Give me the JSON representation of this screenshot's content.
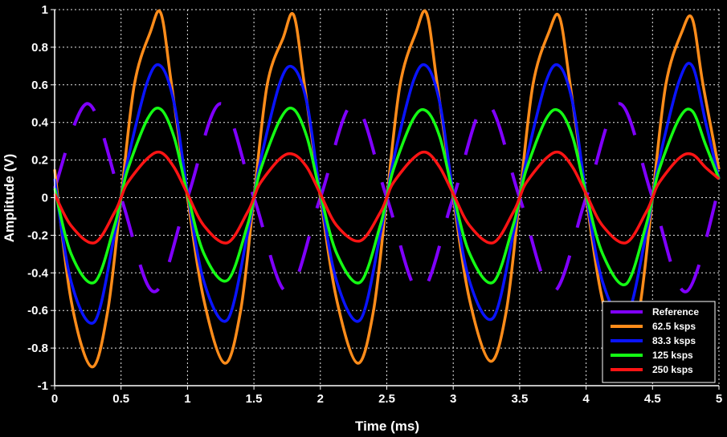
{
  "chart_data": {
    "type": "line",
    "title": "",
    "xlabel": "Time (ms)",
    "ylabel": "Amplitude (V)",
    "xlim": [
      0,
      5
    ],
    "ylim": [
      -1,
      1
    ],
    "grid": true,
    "legend_position": "bottom-right",
    "x_ticks": [
      "0",
      "0.5",
      "1",
      "1.5",
      "2",
      "2.5",
      "3",
      "3.5",
      "4",
      "4.5",
      "5"
    ],
    "y_ticks": [
      "1",
      "0.8",
      "0.6",
      "0.4",
      "0.2",
      "0",
      "-0.2",
      "-0.4",
      "-0.6",
      "-0.8",
      "-1"
    ],
    "series": [
      {
        "name": "Reference",
        "color": "#8000ff",
        "style": "dashed",
        "x": [
          0,
          0.25,
          0.5,
          0.75,
          1.0,
          1.25,
          1.5,
          1.75,
          2.0,
          2.25,
          2.5,
          2.75,
          3.0,
          3.25,
          3.5,
          3.75,
          4.0,
          4.25,
          4.5,
          4.75,
          5.0
        ],
        "values": [
          0.05,
          0.5,
          0,
          -0.5,
          0,
          0.5,
          0,
          -0.5,
          0,
          0.5,
          0,
          -0.5,
          0,
          0.5,
          0,
          -0.5,
          0,
          0.5,
          0,
          -0.5,
          0.05
        ]
      },
      {
        "name": "62.5 ksps",
        "color": "#ff8c1a",
        "x": [
          0,
          0.125,
          0.28,
          0.4,
          0.5,
          0.6,
          0.72,
          0.8,
          0.88,
          1.0,
          1.125,
          1.28,
          1.4,
          1.5,
          1.6,
          1.72,
          1.8,
          1.88,
          2.0,
          2.125,
          2.28,
          2.4,
          2.5,
          2.6,
          2.72,
          2.8,
          2.88,
          3.0,
          3.125,
          3.28,
          3.4,
          3.5,
          3.6,
          3.72,
          3.8,
          3.88,
          4.0,
          4.125,
          4.28,
          4.4,
          4.5,
          4.6,
          4.72,
          4.8,
          4.88,
          5.0
        ],
        "values": [
          0.15,
          -0.55,
          -0.9,
          -0.6,
          0,
          0.6,
          0.88,
          0.98,
          0.6,
          0,
          -0.55,
          -0.88,
          -0.6,
          0,
          0.6,
          0.85,
          0.97,
          0.6,
          0,
          -0.55,
          -0.88,
          -0.6,
          0,
          0.6,
          0.88,
          0.98,
          0.6,
          0,
          -0.55,
          -0.87,
          -0.6,
          0,
          0.6,
          0.88,
          0.96,
          0.6,
          0,
          -0.55,
          -0.87,
          -0.6,
          0,
          0.6,
          0.88,
          0.95,
          0.6,
          0.15
        ]
      },
      {
        "name": "83.3 ksps",
        "color": "#0a14ff",
        "x": [
          0,
          0.125,
          0.3,
          0.45,
          0.5,
          0.55,
          0.7,
          0.8,
          0.9,
          1.0,
          1.125,
          1.3,
          1.45,
          1.5,
          1.55,
          1.7,
          1.8,
          1.9,
          2.0,
          2.125,
          2.3,
          2.45,
          2.5,
          2.55,
          2.7,
          2.8,
          2.9,
          3.0,
          3.125,
          3.3,
          3.45,
          3.5,
          3.55,
          3.7,
          3.8,
          3.9,
          4.0,
          4.125,
          4.3,
          4.45,
          4.5,
          4.55,
          4.7,
          4.8,
          4.9,
          5.0
        ],
        "values": [
          0.1,
          -0.45,
          -0.66,
          -0.2,
          0,
          0.2,
          0.62,
          0.7,
          0.5,
          0.03,
          -0.45,
          -0.65,
          -0.2,
          0,
          0.2,
          0.62,
          0.69,
          0.5,
          0.02,
          -0.45,
          -0.65,
          -0.2,
          0,
          0.2,
          0.62,
          0.7,
          0.5,
          0.02,
          -0.45,
          -0.64,
          -0.2,
          0,
          0.2,
          0.62,
          0.7,
          0.5,
          0.02,
          -0.45,
          -0.64,
          -0.2,
          0,
          0.2,
          0.62,
          0.7,
          0.4,
          0.1
        ]
      },
      {
        "name": "125 ksps",
        "color": "#14ff14",
        "x": [
          0,
          0.125,
          0.3,
          0.45,
          0.5,
          0.55,
          0.7,
          0.8,
          0.9,
          1.0,
          1.125,
          1.3,
          1.45,
          1.5,
          1.55,
          1.7,
          1.8,
          1.9,
          2.0,
          2.125,
          2.3,
          2.45,
          2.5,
          2.55,
          2.7,
          2.8,
          2.9,
          3.0,
          3.125,
          3.3,
          3.45,
          3.5,
          3.55,
          3.7,
          3.8,
          3.9,
          4.0,
          4.125,
          4.3,
          4.45,
          4.5,
          4.55,
          4.7,
          4.8,
          4.9,
          5.0
        ],
        "values": [
          0.05,
          -0.3,
          -0.45,
          -0.15,
          0,
          0.15,
          0.42,
          0.47,
          0.32,
          0.02,
          -0.3,
          -0.44,
          -0.15,
          0,
          0.15,
          0.42,
          0.47,
          0.32,
          0.02,
          -0.3,
          -0.45,
          -0.15,
          0,
          0.15,
          0.42,
          0.46,
          0.32,
          0.02,
          -0.3,
          -0.45,
          -0.15,
          0,
          0.15,
          0.42,
          0.46,
          0.32,
          0.02,
          -0.3,
          -0.46,
          -0.15,
          0,
          0.15,
          0.42,
          0.46,
          0.28,
          0.1
        ]
      },
      {
        "name": "250 ksps",
        "color": "#ff1414",
        "x": [
          0,
          0.125,
          0.3,
          0.45,
          0.5,
          0.55,
          0.7,
          0.8,
          0.9,
          1.0,
          1.125,
          1.3,
          1.45,
          1.5,
          1.55,
          1.7,
          1.8,
          1.9,
          2.0,
          2.125,
          2.3,
          2.45,
          2.5,
          2.55,
          2.7,
          2.8,
          2.9,
          3.0,
          3.125,
          3.3,
          3.45,
          3.5,
          3.55,
          3.7,
          3.8,
          3.9,
          4.0,
          4.125,
          4.3,
          4.45,
          4.5,
          4.55,
          4.7,
          4.8,
          4.9,
          5.0
        ],
        "values": [
          0.02,
          -0.15,
          -0.24,
          -0.08,
          0,
          0.08,
          0.21,
          0.24,
          0.16,
          0.02,
          -0.15,
          -0.24,
          -0.08,
          0,
          0.08,
          0.21,
          0.23,
          0.16,
          0.02,
          -0.15,
          -0.23,
          -0.08,
          0,
          0.08,
          0.21,
          0.24,
          0.16,
          0.02,
          -0.15,
          -0.24,
          -0.08,
          0,
          0.08,
          0.21,
          0.24,
          0.16,
          0.02,
          -0.15,
          -0.24,
          -0.08,
          0,
          0.08,
          0.21,
          0.23,
          0.16,
          0.1
        ]
      }
    ]
  }
}
